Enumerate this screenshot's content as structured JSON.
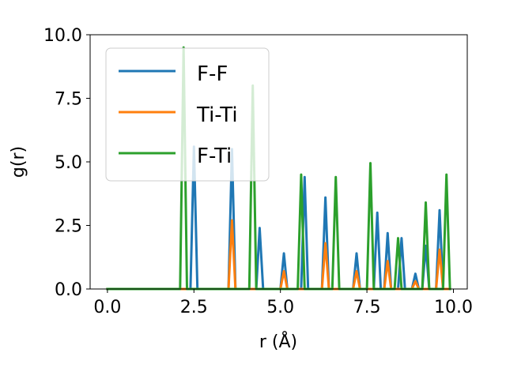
{
  "chart_data": {
    "type": "line",
    "xlabel": "r (Å)",
    "ylabel": "g(r)",
    "xlim": [
      -0.5,
      10.4
    ],
    "ylim": [
      0,
      10
    ],
    "xticks": [
      0.0,
      2.5,
      5.0,
      7.5,
      10.0
    ],
    "yticks": [
      0.0,
      2.5,
      5.0,
      7.5,
      10.0
    ],
    "xtick_labels": [
      "0.0",
      "2.5",
      "5.0",
      "7.5",
      "10.0"
    ],
    "ytick_labels": [
      "0.0",
      "2.5",
      "5.0",
      "7.5",
      "10.0"
    ],
    "grid": false,
    "legend": {
      "position": "upper-left"
    },
    "series": [
      {
        "name": "F-F",
        "color": "#1f77b4",
        "x": [
          0.0,
          2.4,
          2.5,
          2.6,
          3.5,
          3.6,
          3.7,
          4.3,
          4.4,
          4.5,
          5.0,
          5.1,
          5.2,
          5.6,
          5.7,
          5.8,
          6.2,
          6.3,
          6.4,
          7.1,
          7.2,
          7.3,
          7.7,
          7.8,
          7.9,
          8.0,
          8.1,
          8.2,
          8.4,
          8.5,
          8.6,
          8.8,
          8.9,
          9.0,
          9.1,
          9.2,
          9.3,
          9.5,
          9.6,
          9.7,
          9.9
        ],
        "y": [
          0,
          0,
          5.6,
          0,
          0,
          5.5,
          0,
          0,
          2.4,
          0,
          0,
          1.4,
          0,
          0,
          4.4,
          0,
          0,
          3.6,
          0,
          0,
          1.4,
          0,
          0,
          3.0,
          0,
          0,
          2.2,
          0,
          0,
          2.0,
          0,
          0,
          0.6,
          0,
          0,
          1.7,
          0,
          0,
          3.1,
          0,
          0
        ]
      },
      {
        "name": "Ti-Ti",
        "color": "#ff7f0e",
        "x": [
          0.0,
          3.5,
          3.6,
          3.7,
          5.0,
          5.1,
          5.2,
          6.2,
          6.3,
          6.4,
          7.1,
          7.2,
          7.3,
          8.0,
          8.1,
          8.2,
          8.8,
          8.9,
          9.0,
          9.5,
          9.6,
          9.7,
          9.9
        ],
        "y": [
          0,
          0,
          2.7,
          0,
          0,
          0.7,
          0,
          0,
          1.8,
          0,
          0,
          0.7,
          0,
          0,
          1.1,
          0,
          0,
          0.3,
          0,
          0,
          1.55,
          0,
          0
        ]
      },
      {
        "name": "F-Ti",
        "color": "#2ca02c",
        "x": [
          0.0,
          2.1,
          2.2,
          2.3,
          4.1,
          4.2,
          4.3,
          5.5,
          5.6,
          5.7,
          6.5,
          6.6,
          6.7,
          7.5,
          7.6,
          7.7,
          8.3,
          8.4,
          8.5,
          9.1,
          9.2,
          9.3,
          9.7,
          9.8,
          9.9
        ],
        "y": [
          0,
          0,
          9.5,
          0,
          0,
          8.0,
          0,
          0,
          4.5,
          0,
          0,
          4.4,
          0,
          0,
          4.95,
          0,
          0,
          2.0,
          0,
          0,
          3.4,
          0,
          0,
          4.5,
          0
        ]
      }
    ]
  }
}
